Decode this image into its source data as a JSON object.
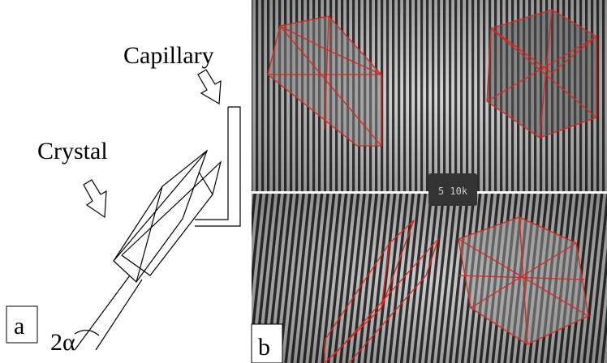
{
  "labels": {
    "capillary": "Capillary",
    "crystal": "Crystal",
    "panel_a": "a",
    "angle": "2α",
    "panel_b": "b",
    "counter": "5 10k"
  }
}
